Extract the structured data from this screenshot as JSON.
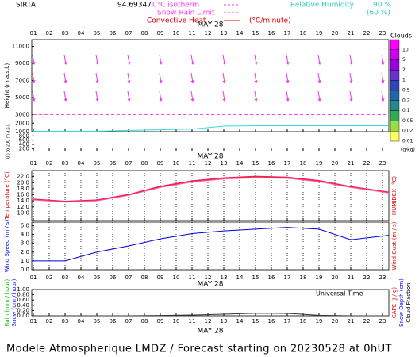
{
  "title": "SIRTA",
  "coordinate": "94.69347",
  "legend": {
    "isotherm": "0°C isotherm",
    "snow_rain": "Snow-Rain Limit",
    "convective": "Convective Heat",
    "convective_unit": "(°C/minute)",
    "humidity": "Relative Humidity",
    "humidity_high": "90 %",
    "humidity_low": "(60 %)"
  },
  "footer": "Modele Atmospherique LMDZ / Forecast starting on 20230528 at 0hUT",
  "time_axis": {
    "date": "MAY 28",
    "xlabel": "Universal Time",
    "xlim": [
      0.9,
      23.4
    ],
    "xticks": [
      {
        "value": 1,
        "label": "01"
      },
      {
        "value": 2,
        "label": "02"
      },
      {
        "value": 3,
        "label": "03"
      },
      {
        "value": 4,
        "label": "04"
      },
      {
        "value": 5,
        "label": "05"
      },
      {
        "value": 6,
        "label": "06"
      },
      {
        "value": 7,
        "label": "07"
      },
      {
        "value": 8,
        "label": "08"
      },
      {
        "value": 9,
        "label": "09"
      },
      10,
      11,
      12,
      13,
      14,
      15,
      16,
      17,
      18,
      19,
      20,
      21,
      22,
      23
    ]
  },
  "colorbar": {
    "title": "Clouds",
    "unit": "(g/kg)",
    "levels": [
      10,
      5,
      2,
      1,
      0.5,
      0.2,
      0.1,
      0.05,
      0.02,
      0.01
    ],
    "colors": [
      "#ff00ff",
      "#cc00ee",
      "#9900dd",
      "#6633cc",
      "#3344bb",
      "#2266aa",
      "#228888",
      "#33aa55",
      "#99dd44",
      "#ffff66"
    ]
  },
  "chart_data": [
    {
      "type": "line",
      "left_labels": [
        {
          "text": "Height (m a.s.l.)",
          "color": "#000000"
        }
      ],
      "ylim": [
        1000,
        11800
      ],
      "yticks": [
        11000,
        9000,
        7000,
        5000,
        3000,
        2000,
        1000
      ],
      "series": [
        {
          "color": "#ff44ff",
          "dash": true,
          "x": [
            1,
            23.4
          ],
          "values": [
            3000,
            3000
          ]
        },
        {
          "color": "#33dddd",
          "dash": false,
          "x": [
            1,
            5,
            7,
            11,
            13,
            15,
            17,
            19,
            21,
            23.4
          ],
          "values": [
            1050,
            1050,
            1150,
            1300,
            1650,
            1700,
            1700,
            1700,
            1700,
            1700
          ]
        }
      ]
    },
    {
      "type": "line",
      "left_labels": [
        {
          "text": "Up to 200 m a.s.l.",
          "color": "#000000"
        }
      ],
      "ylim": [
        100,
        1000
      ],
      "yticks": [
        800,
        600,
        400,
        200
      ]
    },
    {
      "type": "line",
      "left_labels": [
        {
          "text": "Temperature (°C)",
          "color": "#dd0000"
        }
      ],
      "right_labels": [
        {
          "text": "HUMIDEX (°C)",
          "color": "#dd0000"
        }
      ],
      "ylim": [
        7.5,
        24
      ],
      "yticks": [
        {
          "value": 22,
          "label": "22.0"
        },
        {
          "value": 20,
          "label": "20.0"
        },
        {
          "value": 18,
          "label": "18.0"
        },
        {
          "value": 16,
          "label": "16.0"
        },
        {
          "value": 14,
          "label": "14.0"
        },
        {
          "value": 12,
          "label": "12.0"
        },
        {
          "value": 10,
          "label": "10.0"
        }
      ],
      "hour_lines": true,
      "series": [
        {
          "color": "#ee2255",
          "width": 2,
          "x": [
            1,
            3,
            5,
            7,
            9,
            11,
            13,
            15,
            17,
            19,
            21,
            23.4
          ],
          "values": [
            14.5,
            13.8,
            14.2,
            16,
            18.7,
            20.5,
            21.5,
            22,
            21.7,
            20.6,
            18.6,
            16.8
          ]
        },
        {
          "color": "#ff66aa",
          "width": 1,
          "x": [
            1,
            3,
            5,
            7,
            9,
            11,
            13,
            15,
            17,
            19,
            21,
            23.4
          ],
          "values": [
            14.3,
            13.6,
            14,
            15.8,
            18.4,
            20.2,
            21.2,
            21.6,
            21.4,
            20.3,
            18.4,
            16.6
          ]
        }
      ]
    },
    {
      "type": "line",
      "left_labels": [
        {
          "text": "Wind Speed (m / s)",
          "color": "#0000ee"
        }
      ],
      "right_labels": [
        {
          "text": "Wind Gust (m / s)",
          "color": "#dd0000"
        }
      ],
      "ylim": [
        0,
        5.4
      ],
      "yticks": [
        {
          "value": 5,
          "label": "5.0"
        },
        {
          "value": 4,
          "label": "4.0"
        },
        {
          "value": 3,
          "label": "3.0"
        },
        {
          "value": 2,
          "label": "2.0"
        },
        {
          "value": 1,
          "label": "1.0"
        },
        {
          "value": 0,
          "label": "0.0"
        }
      ],
      "hour_lines": true,
      "series": [
        {
          "color": "#0000dd",
          "width": 1,
          "x": [
            1,
            3,
            5,
            7,
            9,
            11,
            13,
            15,
            17,
            19,
            21,
            23.4
          ],
          "values": [
            1,
            1,
            2,
            2.7,
            3.5,
            4.1,
            4.4,
            4.6,
            4.8,
            4.6,
            3.4,
            3.9
          ]
        }
      ]
    },
    {
      "type": "line",
      "left_labels": [
        {
          "text": "Rain (mm / hour)",
          "color": "#00bb00"
        },
        {
          "text": "Snow (cm / hour)",
          "color": "#0000ee"
        }
      ],
      "right_labels": [
        {
          "text": "CAPE (J / g)",
          "color": "#dd0000"
        },
        {
          "text": "Snow Depth (cm)",
          "color": "#0000ee"
        },
        {
          "text": "Cloud Fraction",
          "color": "#000000"
        }
      ],
      "ylim": [
        0,
        1
      ],
      "yticks": [
        {
          "value": 0,
          "label": "0.00"
        },
        {
          "value": 0.2,
          "label": "0.20"
        },
        {
          "value": 0.4,
          "label": "0.40"
        },
        {
          "value": 0.6,
          "label": "0.60"
        },
        {
          "value": 0.8,
          "label": "0.80"
        },
        {
          "value": 1,
          "label": "1.00"
        }
      ],
      "series": [
        {
          "color": "#333333",
          "width": 1,
          "x": [
            1,
            3,
            5,
            7,
            9,
            11,
            13,
            15,
            17,
            19,
            21,
            23.4
          ],
          "values": [
            0,
            0,
            0,
            0,
            0.01,
            0.03,
            0.06,
            0.1,
            0.09,
            0.02,
            0,
            0
          ]
        }
      ]
    }
  ]
}
